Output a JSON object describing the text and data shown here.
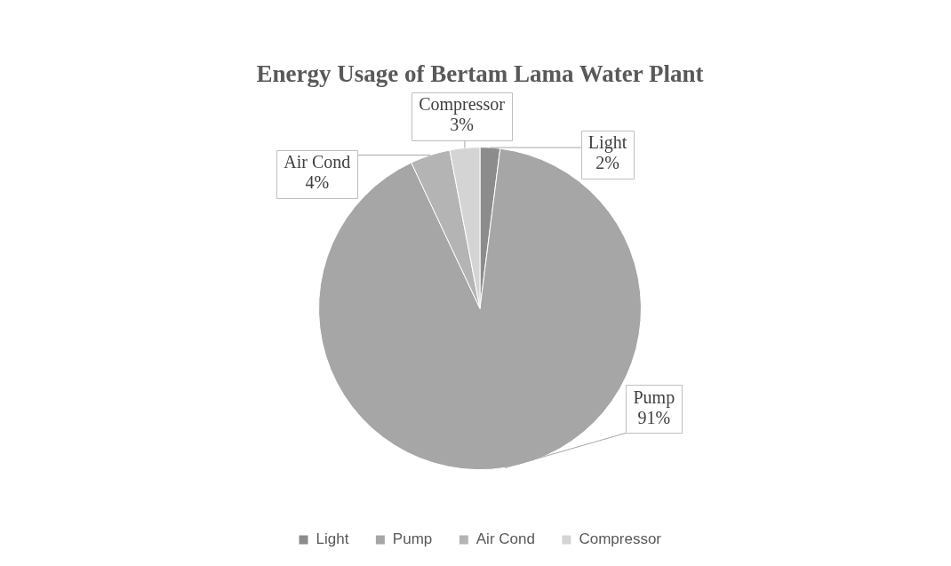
{
  "chart_data": {
    "type": "pie",
    "title": "Energy Usage of Bertam Lama Water Plant",
    "categories": [
      "Light",
      "Pump",
      "Air Cond",
      "Compressor"
    ],
    "values": [
      2,
      91,
      4,
      3
    ],
    "colors": [
      "#8c8c8c",
      "#a6a6a6",
      "#b4b4b4",
      "#d4d4d4"
    ],
    "value_labels": [
      "2%",
      "91%",
      "4%",
      "3%"
    ],
    "legend": "bottom"
  }
}
